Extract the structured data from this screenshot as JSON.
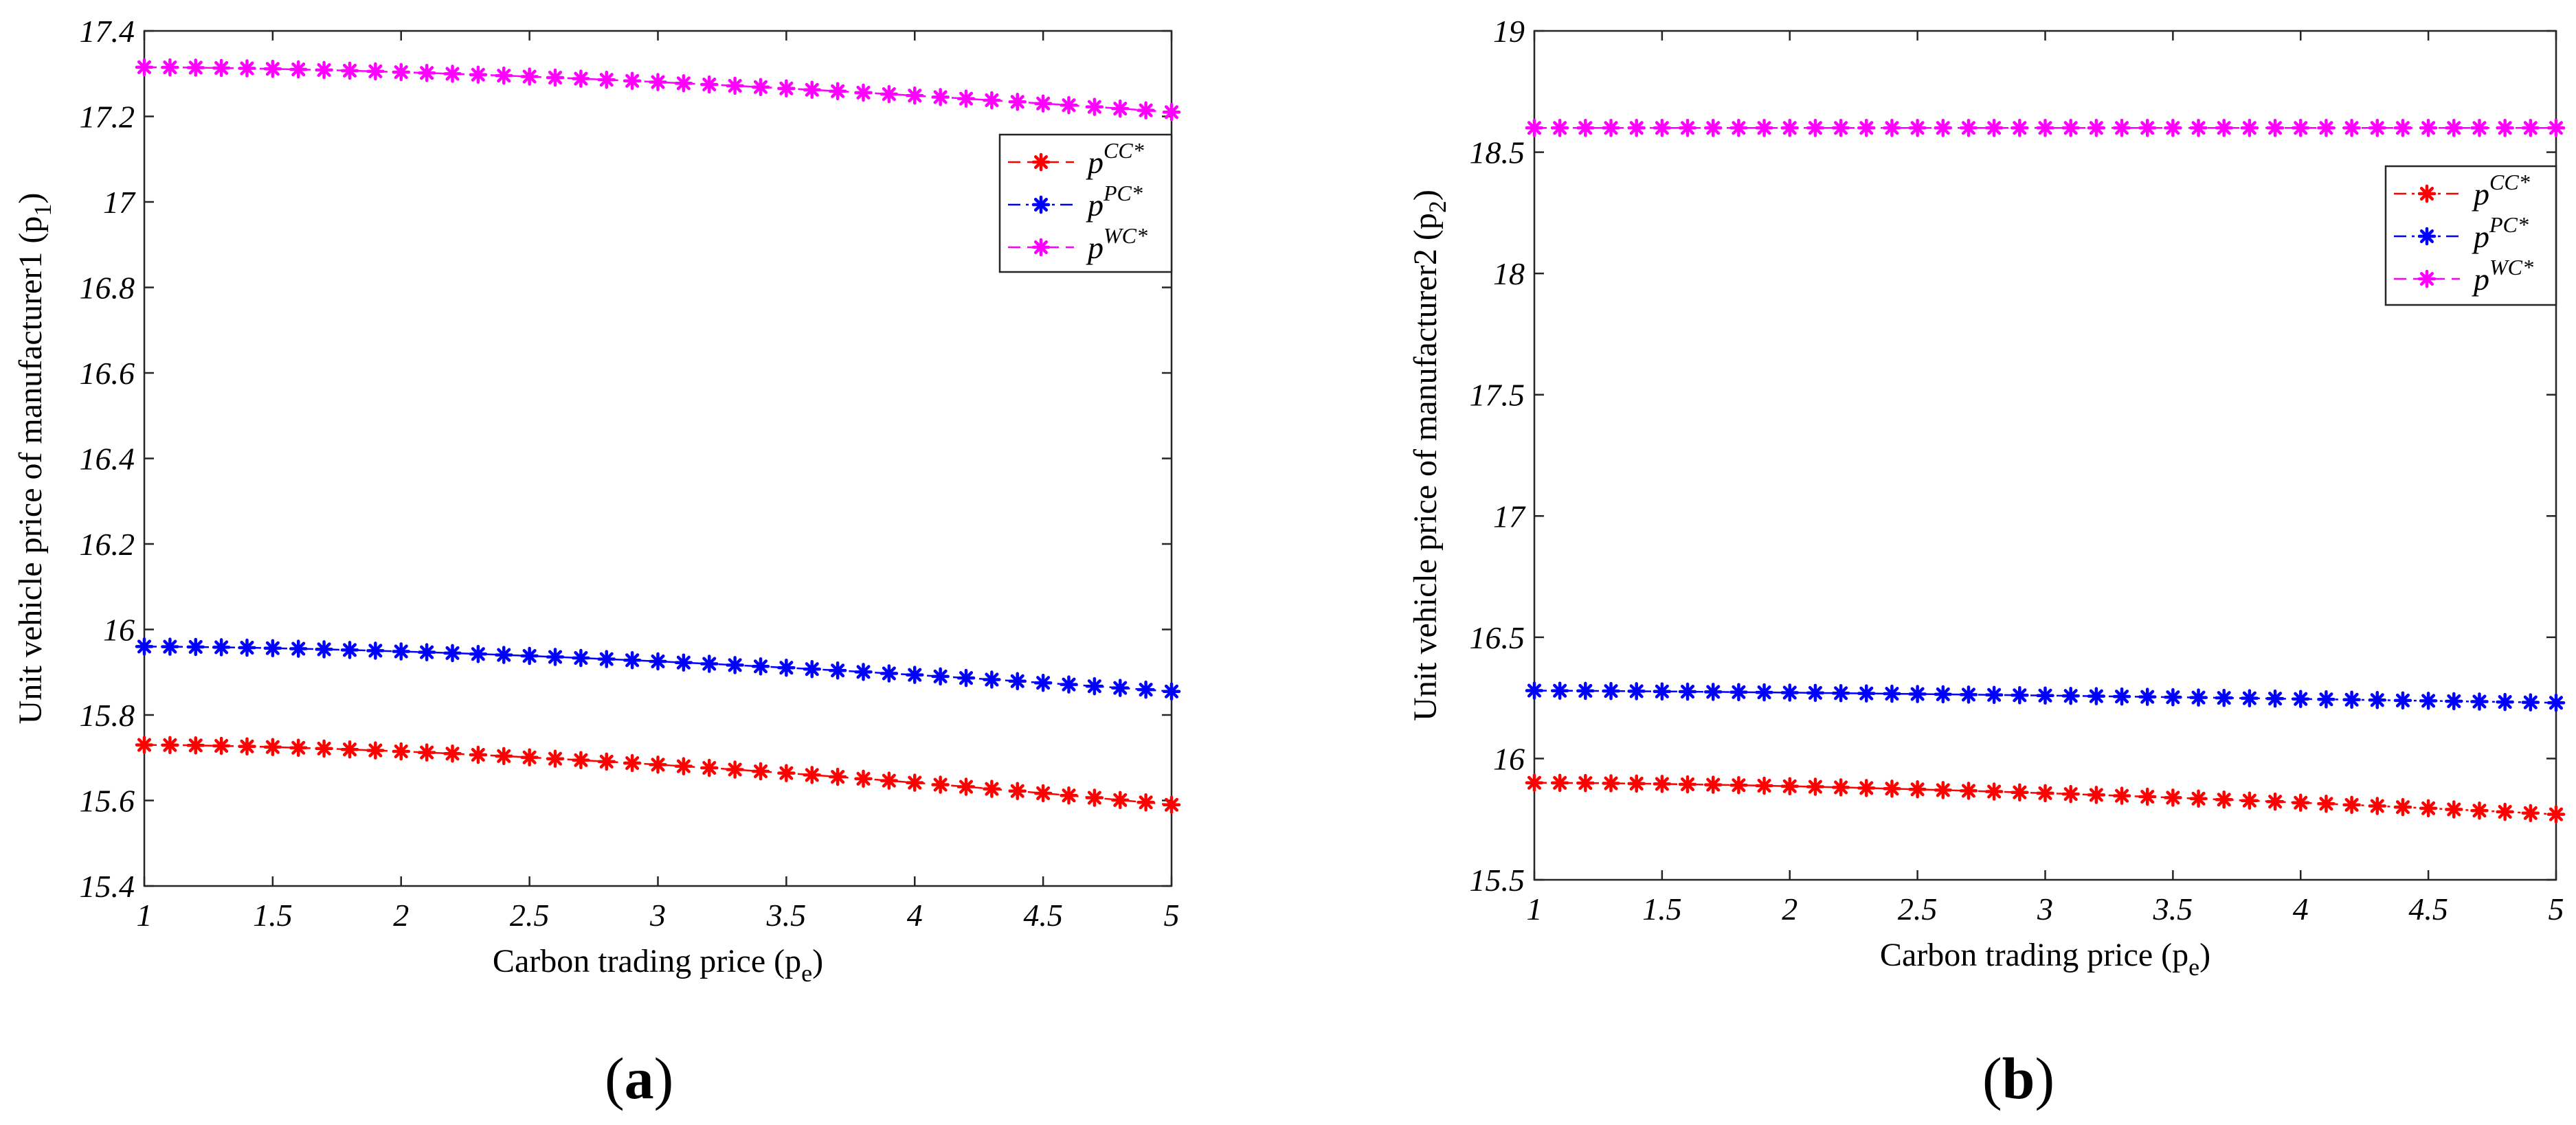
{
  "panels": [
    {
      "letter": "a"
    },
    {
      "letter": "b"
    }
  ],
  "chart_data": [
    {
      "type": "line",
      "panel": "a",
      "xlabel": "Carbon trading price (p",
      "xlabel_sub": "e",
      "xlabel_close": ")",
      "ylabel": "Unit vehicle price of manufacturer1 (p",
      "ylabel_sub": "1",
      "ylabel_close": ")",
      "xlim": [
        1,
        5
      ],
      "ylim": [
        15.4,
        17.4
      ],
      "xticks": [
        1,
        1.5,
        2,
        2.5,
        3,
        3.5,
        4,
        4.5,
        5
      ],
      "xtick_labels": [
        "1",
        "1.5",
        "2",
        "2.5",
        "3",
        "3.5",
        "4",
        "4.5",
        "5"
      ],
      "yticks": [
        15.4,
        15.6,
        15.8,
        16,
        16.2,
        16.4,
        16.6,
        16.8,
        17,
        17.2,
        17.4
      ],
      "ytick_labels": [
        "15.4",
        "15.6",
        "15.8",
        "16",
        "16.2",
        "16.4",
        "16.6",
        "16.8",
        "17",
        "17.2",
        "17.4"
      ],
      "legend_position": "top-right",
      "x_start": 1,
      "x_step": 0.1,
      "n_points": 41,
      "series": [
        {
          "name": "p",
          "sup": "CC*",
          "color": "#ff0000",
          "dash": "dash",
          "start": 15.73,
          "end": 15.59,
          "curve": 1.6
        },
        {
          "name": "p",
          "sup": "PC*",
          "color": "#0000ff",
          "dash": "dashdot",
          "start": 15.96,
          "end": 15.855,
          "curve": 1.6
        },
        {
          "name": "p",
          "sup": "WC*",
          "color": "#ff00ff",
          "dash": "dash",
          "start": 17.315,
          "end": 17.21,
          "curve": 1.6
        }
      ]
    },
    {
      "type": "line",
      "panel": "b",
      "xlabel": "Carbon trading price (p",
      "xlabel_sub": "e",
      "xlabel_close": ")",
      "ylabel": "Unit vehicle price of manufacturer2 (p",
      "ylabel_sub": "2",
      "ylabel_close": ")",
      "xlim": [
        1,
        5
      ],
      "ylim": [
        15.5,
        19
      ],
      "xticks": [
        1,
        1.5,
        2,
        2.5,
        3,
        3.5,
        4,
        4.5,
        5
      ],
      "xtick_labels": [
        "1",
        "1.5",
        "2",
        "2.5",
        "3",
        "3.5",
        "4",
        "4.5",
        "5"
      ],
      "yticks": [
        15.5,
        16,
        16.5,
        17,
        17.5,
        18,
        18.5,
        19
      ],
      "ytick_labels": [
        "15.5",
        "16",
        "16.5",
        "17",
        "17.5",
        "18",
        "18.5",
        "19"
      ],
      "legend_position": "top-right",
      "x_start": 1,
      "x_step": 0.1,
      "n_points": 41,
      "series": [
        {
          "name": "p",
          "sup": "CC*",
          "color": "#ff0000",
          "dash": "dashdot",
          "start": 15.9,
          "end": 15.77,
          "curve": 1.6
        },
        {
          "name": "p",
          "sup": "PC*",
          "color": "#0000ff",
          "dash": "dashdot",
          "start": 16.28,
          "end": 16.23,
          "curve": 1.3
        },
        {
          "name": "p",
          "sup": "WC*",
          "color": "#ff00ff",
          "dash": "dash",
          "start": 18.6,
          "end": 18.6,
          "curve": 1
        }
      ]
    }
  ]
}
